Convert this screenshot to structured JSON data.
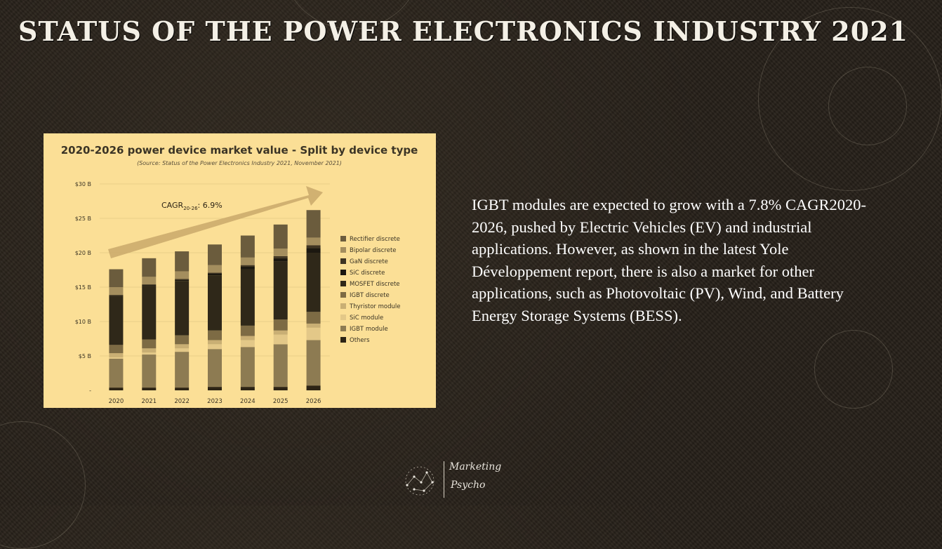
{
  "slide": {
    "title": "STATUS OF THE POWER ELECTRONICS INDUSTRY 2021",
    "body": "IGBT modules are expected to grow with a 7.8% CAGR2020-2026, pushed by Electric Vehicles (EV) and industrial applications. However, as shown in the latest Yole Développement report, there is also a market for other applications, such as Photovoltaic (PV), Wind, and Battery Energy Storage Systems (BESS).",
    "logo_line1": "Marketing",
    "logo_line2": "Psycho"
  },
  "colors": {
    "chart_bg": "#fbdf96",
    "title": "#f4f0e6",
    "text": "#ffffff"
  },
  "chart_data": {
    "type": "bar",
    "stacked": true,
    "title": "2020-2026 power device market value - Split by device type",
    "subtitle": "(Source: Status of the Power Electronics Industry 2021, November 2021)",
    "annotation_text": "CAGR",
    "annotation_sub": "20-26",
    "annotation_value": ": 6.9%",
    "categories": [
      "2020",
      "2021",
      "2022",
      "2023",
      "2024",
      "2025",
      "2026"
    ],
    "y_ticks": [
      "-",
      "$5 B",
      "$10 B",
      "$15 B",
      "$20 B",
      "$25 B",
      "$30 B"
    ],
    "ylim": [
      0,
      30
    ],
    "grid": true,
    "legend_position": "right",
    "series": [
      {
        "name": "Others",
        "color": "#2d2415",
        "values": [
          0.4,
          0.4,
          0.4,
          0.5,
          0.5,
          0.5,
          0.7
        ]
      },
      {
        "name": "IGBT module",
        "color": "#8d7b52",
        "values": [
          4.2,
          4.8,
          5.2,
          5.5,
          5.8,
          6.2,
          6.6
        ]
      },
      {
        "name": "SiC module",
        "color": "#e3c888",
        "values": [
          0.2,
          0.3,
          0.5,
          0.7,
          1.0,
          1.4,
          1.8
        ]
      },
      {
        "name": "Thyristor module",
        "color": "#c9af74",
        "values": [
          0.6,
          0.6,
          0.6,
          0.6,
          0.6,
          0.6,
          0.6
        ]
      },
      {
        "name": "IGBT discrete",
        "color": "#7d6b44",
        "values": [
          1.2,
          1.3,
          1.3,
          1.4,
          1.5,
          1.6,
          1.7
        ]
      },
      {
        "name": "MOSFET discrete",
        "color": "#2f2819",
        "values": [
          7.1,
          7.8,
          7.9,
          8.0,
          8.2,
          8.4,
          8.6
        ]
      },
      {
        "name": "SiC discrete",
        "color": "#1c1810",
        "values": [
          0.1,
          0.1,
          0.2,
          0.3,
          0.4,
          0.5,
          0.7
        ]
      },
      {
        "name": "GaN discrete",
        "color": "#3e3422",
        "values": [
          0.1,
          0.1,
          0.1,
          0.1,
          0.2,
          0.3,
          0.4
        ]
      },
      {
        "name": "Bipolar discrete",
        "color": "#a48e5e",
        "values": [
          1.1,
          1.1,
          1.1,
          1.1,
          1.1,
          1.1,
          1.1
        ]
      },
      {
        "name": "Rectifier discrete",
        "color": "#6b5c3d",
        "values": [
          2.6,
          2.7,
          2.9,
          3.0,
          3.2,
          3.5,
          4.0
        ]
      }
    ]
  }
}
